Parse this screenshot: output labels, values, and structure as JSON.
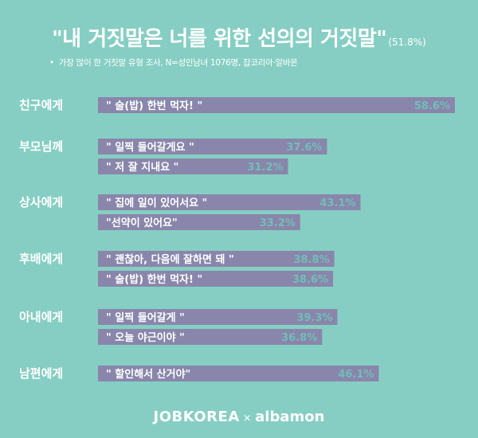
{
  "header": {
    "title": "\"내 거짓말은 너를 위한 선의의 거짓말\"",
    "title_value": "(51.8%)",
    "subtitle_bullet": "•",
    "subtitle": "가장 많이 한 거짓말 유형  조사, N=성인남녀 1076명, 잡코리아·알바몬"
  },
  "colors": {
    "background": "#86CEC3",
    "bar": "#8A86AB",
    "text": "#ffffff",
    "value_text": "#6FBFB7"
  },
  "chart_data": {
    "type": "bar",
    "orientation": "horizontal",
    "xlim": [
      0,
      60
    ],
    "groups": [
      {
        "label": "친구에게",
        "items": [
          {
            "text": "\" 술(밥) 한번 먹자! \"",
            "value": 58.6,
            "value_label": "58.6%"
          }
        ]
      },
      {
        "label": "부모님께",
        "items": [
          {
            "text": "\" 일찍 들어갈게요 \"",
            "value": 37.6,
            "value_label": "37.6%"
          },
          {
            "text": "\" 저 잘 지내요 \"",
            "value": 31.2,
            "value_label": "31.2%"
          }
        ]
      },
      {
        "label": "상사에게",
        "items": [
          {
            "text": "\" 집에 일이 있어서요 \"",
            "value": 43.1,
            "value_label": "43.1%"
          },
          {
            "text": "\"선약이 있어요\"",
            "value": 33.2,
            "value_label": "33.2%"
          }
        ]
      },
      {
        "label": "후배에게",
        "items": [
          {
            "text": "\" 괜찮아, 다음에 잘하면 돼 \"",
            "value": 38.8,
            "value_label": "38.8%"
          },
          {
            "text": "\" 술(밥) 한번 먹자! \"",
            "value": 38.6,
            "value_label": "38.6%"
          }
        ]
      },
      {
        "label": "아내에게",
        "items": [
          {
            "text": "\" 일찍 들어갈게 \"",
            "value": 39.3,
            "value_label": "39.3%"
          },
          {
            "text": "\" 오늘 야근이야 \"",
            "value": 36.8,
            "value_label": "36.8%"
          }
        ]
      },
      {
        "label": "남편에게",
        "items": [
          {
            "text": "\" 할인해서 산거야\"",
            "value": 46.1,
            "value_label": "46.1%"
          }
        ]
      }
    ]
  },
  "footer": {
    "brand1": "JOBKOREA",
    "separator": "×",
    "brand2": "albamon"
  }
}
